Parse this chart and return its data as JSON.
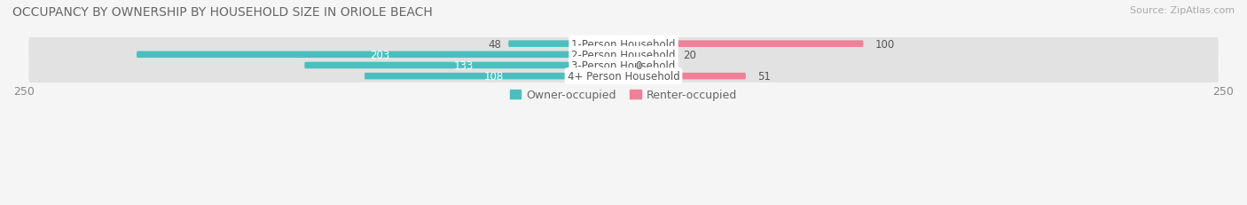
{
  "title": "OCCUPANCY BY OWNERSHIP BY HOUSEHOLD SIZE IN ORIOLE BEACH",
  "source": "Source: ZipAtlas.com",
  "categories": [
    "1-Person Household",
    "2-Person Household",
    "3-Person Household",
    "4+ Person Household"
  ],
  "owner_values": [
    48,
    203,
    133,
    108
  ],
  "renter_values": [
    100,
    20,
    0,
    51
  ],
  "owner_color": "#4bbfbf",
  "renter_color": "#f08098",
  "row_bg_color": "#e8e8e8",
  "axis_max": 250,
  "title_fontsize": 10,
  "source_fontsize": 8,
  "tick_fontsize": 9,
  "bar_label_fontsize": 8.5,
  "category_label_fontsize": 8.5,
  "legend_fontsize": 9
}
